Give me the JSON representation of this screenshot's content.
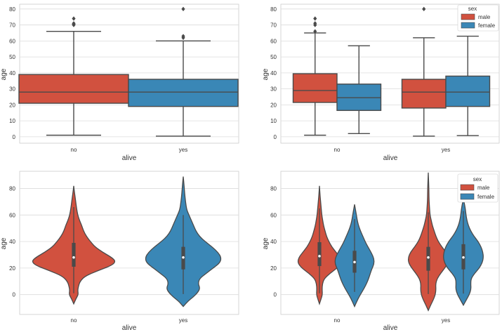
{
  "colors": {
    "male": "#d1513f",
    "female": "#3a87b6",
    "line": "#4a4a4a",
    "grid": "#dcdcdc",
    "frame": "#cccccc"
  },
  "chart_data": [
    {
      "id": "box-alive",
      "type": "box",
      "xlabel": "alive",
      "ylabel": "age",
      "ylim": [
        -4,
        83
      ],
      "yticks": [
        "0",
        "10",
        "20",
        "30",
        "40",
        "50",
        "60",
        "70",
        "80"
      ],
      "categories": [
        "no",
        "yes"
      ],
      "series": [
        {
          "name": "all",
          "color": "#d1513f",
          "stats": [
            {
              "min": 1,
              "q1": 21,
              "median": 28,
              "q3": 39,
              "max": 66,
              "outliers": [
                70,
                70.5,
                71,
                74
              ]
            },
            {
              "min": 0.4,
              "q1": 19,
              "median": 28,
              "q3": 36,
              "max": 60,
              "outliers": [
                62,
                63,
                80
              ]
            }
          ]
        }
      ],
      "per_category_colors": [
        "#d1513f",
        "#3a87b6"
      ]
    },
    {
      "id": "box-alive-sex",
      "type": "box",
      "xlabel": "alive",
      "ylabel": "age",
      "ylim": [
        -4,
        83
      ],
      "yticks": [
        "0",
        "10",
        "20",
        "30",
        "40",
        "50",
        "60",
        "70",
        "80"
      ],
      "categories": [
        "no",
        "yes"
      ],
      "legend": {
        "title": "sex",
        "labels": [
          "male",
          "female"
        ],
        "position": "top-right"
      },
      "series": [
        {
          "name": "male",
          "color": "#d1513f",
          "stats": [
            {
              "min": 1,
              "q1": 21.5,
              "median": 29,
              "q3": 39.5,
              "max": 65,
              "outliers": [
                66,
                70,
                71,
                74
              ]
            },
            {
              "min": 0.4,
              "q1": 18,
              "median": 28,
              "q3": 36,
              "max": 62,
              "outliers": [
                80
              ]
            }
          ]
        },
        {
          "name": "female",
          "color": "#3a87b6",
          "stats": [
            {
              "min": 2,
              "q1": 16.5,
              "median": 24.5,
              "q3": 33,
              "max": 57,
              "outliers": []
            },
            {
              "min": 0.75,
              "q1": 19,
              "median": 28,
              "q3": 38,
              "max": 63,
              "outliers": []
            }
          ]
        }
      ]
    },
    {
      "id": "violin-alive",
      "type": "violin",
      "xlabel": "alive",
      "ylabel": "age",
      "ylim": [
        -15,
        93
      ],
      "yticks": [
        "0",
        "20",
        "40",
        "60",
        "80"
      ],
      "yticks_values": [
        0,
        20,
        40,
        60,
        80
      ],
      "categories": [
        "no",
        "yes"
      ],
      "per_category_colors": [
        "#d1513f",
        "#3a87b6"
      ],
      "series": [
        {
          "name": "all",
          "violins": [
            {
              "min": -7,
              "max": 82,
              "whisker_lo": 1,
              "whisker_hi": 66,
              "q1": 21,
              "median": 28,
              "q3": 39,
              "profile": [
                [
                  -7,
                  0.0
                ],
                [
                  -3,
                  0.04
                ],
                [
                  0,
                  0.08
                ],
                [
                  3,
                  0.07
                ],
                [
                  6,
                  0.08
                ],
                [
                  10,
                  0.11
                ],
                [
                  14,
                  0.2
                ],
                [
                  18,
                  0.42
                ],
                [
                  22,
                  0.66
                ],
                [
                  25,
                  0.73
                ],
                [
                  28,
                  0.66
                ],
                [
                  32,
                  0.5
                ],
                [
                  36,
                  0.37
                ],
                [
                  40,
                  0.29
                ],
                [
                  44,
                  0.22
                ],
                [
                  48,
                  0.17
                ],
                [
                  52,
                  0.14
                ],
                [
                  56,
                  0.1
                ],
                [
                  60,
                  0.07
                ],
                [
                  65,
                  0.05
                ],
                [
                  70,
                  0.035
                ],
                [
                  75,
                  0.02
                ],
                [
                  78,
                  0.01
                ],
                [
                  82,
                  0.0
                ]
              ]
            },
            {
              "min": -9,
              "max": 89,
              "whisker_lo": 0.4,
              "whisker_hi": 60,
              "q1": 19,
              "median": 28,
              "q3": 36,
              "profile": [
                [
                  -9,
                  0.0
                ],
                [
                  -5,
                  0.08
                ],
                [
                  -2,
                  0.17
                ],
                [
                  2,
                  0.26
                ],
                [
                  5,
                  0.29
                ],
                [
                  8,
                  0.26
                ],
                [
                  12,
                  0.28
                ],
                [
                  16,
                  0.4
                ],
                [
                  20,
                  0.52
                ],
                [
                  24,
                  0.64
                ],
                [
                  28,
                  0.66
                ],
                [
                  32,
                  0.6
                ],
                [
                  36,
                  0.5
                ],
                [
                  40,
                  0.38
                ],
                [
                  44,
                  0.28
                ],
                [
                  48,
                  0.22
                ],
                [
                  52,
                  0.18
                ],
                [
                  56,
                  0.14
                ],
                [
                  60,
                  0.1
                ],
                [
                  64,
                  0.06
                ],
                [
                  70,
                  0.04
                ],
                [
                  76,
                  0.025
                ],
                [
                  82,
                  0.015
                ],
                [
                  89,
                  0.0
                ]
              ]
            }
          ]
        }
      ]
    },
    {
      "id": "violin-alive-sex",
      "type": "violin",
      "xlabel": "alive",
      "ylabel": "age",
      "ylim": [
        -15,
        93
      ],
      "yticks": [
        "0",
        "20",
        "40",
        "60",
        "80"
      ],
      "yticks_values": [
        0,
        20,
        40,
        60,
        80
      ],
      "categories": [
        "no",
        "yes"
      ],
      "legend": {
        "title": "sex",
        "labels": [
          "male",
          "female"
        ],
        "position": "top-right"
      },
      "series": [
        {
          "name": "male",
          "color": "#d1513f",
          "violins": [
            {
              "min": -7,
              "max": 82,
              "whisker_lo": 1,
              "whisker_hi": 65,
              "q1": 21.5,
              "median": 29,
              "q3": 39.5,
              "profile": [
                [
                  -7,
                  0.0
                ],
                [
                  -3,
                  0.06
                ],
                [
                  0,
                  0.1
                ],
                [
                  4,
                  0.09
                ],
                [
                  8,
                  0.1
                ],
                [
                  12,
                  0.16
                ],
                [
                  16,
                  0.36
                ],
                [
                  20,
                  0.6
                ],
                [
                  24,
                  0.74
                ],
                [
                  28,
                  0.7
                ],
                [
                  32,
                  0.56
                ],
                [
                  36,
                  0.42
                ],
                [
                  40,
                  0.32
                ],
                [
                  44,
                  0.24
                ],
                [
                  48,
                  0.19
                ],
                [
                  52,
                  0.14
                ],
                [
                  56,
                  0.11
                ],
                [
                  60,
                  0.08
                ],
                [
                  65,
                  0.06
                ],
                [
                  70,
                  0.04
                ],
                [
                  75,
                  0.02
                ],
                [
                  82,
                  0.0
                ]
              ]
            },
            {
              "min": -12,
              "max": 92,
              "whisker_lo": 0.4,
              "whisker_hi": 62,
              "q1": 18,
              "median": 28,
              "q3": 36,
              "profile": [
                [
                  -12,
                  0.0
                ],
                [
                  -8,
                  0.08
                ],
                [
                  -4,
                  0.17
                ],
                [
                  0,
                  0.24
                ],
                [
                  4,
                  0.26
                ],
                [
                  8,
                  0.25
                ],
                [
                  12,
                  0.3
                ],
                [
                  16,
                  0.42
                ],
                [
                  20,
                  0.56
                ],
                [
                  24,
                  0.67
                ],
                [
                  28,
                  0.68
                ],
                [
                  32,
                  0.6
                ],
                [
                  36,
                  0.46
                ],
                [
                  40,
                  0.34
                ],
                [
                  44,
                  0.26
                ],
                [
                  48,
                  0.2
                ],
                [
                  52,
                  0.14
                ],
                [
                  56,
                  0.1
                ],
                [
                  60,
                  0.06
                ],
                [
                  66,
                  0.04
                ],
                [
                  72,
                  0.025
                ],
                [
                  80,
                  0.02
                ],
                [
                  86,
                  0.01
                ],
                [
                  92,
                  0.0
                ]
              ]
            }
          ]
        },
        {
          "name": "female",
          "color": "#3a87b6",
          "violins": [
            {
              "min": -9,
              "max": 68,
              "whisker_lo": 2,
              "whisker_hi": 57,
              "q1": 16.5,
              "median": 24.5,
              "q3": 33,
              "profile": [
                [
                  -9,
                  0.0
                ],
                [
                  -5,
                  0.08
                ],
                [
                  -1,
                  0.17
                ],
                [
                  3,
                  0.28
                ],
                [
                  7,
                  0.38
                ],
                [
                  11,
                  0.46
                ],
                [
                  15,
                  0.52
                ],
                [
                  19,
                  0.58
                ],
                [
                  23,
                  0.66
                ],
                [
                  27,
                  0.66
                ],
                [
                  31,
                  0.58
                ],
                [
                  35,
                  0.48
                ],
                [
                  39,
                  0.38
                ],
                [
                  43,
                  0.3
                ],
                [
                  47,
                  0.22
                ],
                [
                  51,
                  0.15
                ],
                [
                  55,
                  0.1
                ],
                [
                  59,
                  0.07
                ],
                [
                  63,
                  0.04
                ],
                [
                  68,
                  0.0
                ]
              ]
            },
            {
              "min": -8,
              "max": 72,
              "whisker_lo": 0.75,
              "whisker_hi": 63,
              "q1": 19,
              "median": 28,
              "q3": 38,
              "profile": [
                [
                  -8,
                  0.0
                ],
                [
                  -4,
                  0.1
                ],
                [
                  0,
                  0.2
                ],
                [
                  4,
                  0.26
                ],
                [
                  8,
                  0.25
                ],
                [
                  12,
                  0.26
                ],
                [
                  16,
                  0.38
                ],
                [
                  20,
                  0.54
                ],
                [
                  24,
                  0.64
                ],
                [
                  28,
                  0.68
                ],
                [
                  32,
                  0.66
                ],
                [
                  36,
                  0.6
                ],
                [
                  40,
                  0.5
                ],
                [
                  44,
                  0.36
                ],
                [
                  48,
                  0.25
                ],
                [
                  52,
                  0.17
                ],
                [
                  56,
                  0.12
                ],
                [
                  60,
                  0.09
                ],
                [
                  64,
                  0.07
                ],
                [
                  68,
                  0.04
                ],
                [
                  72,
                  0.0
                ]
              ]
            }
          ]
        }
      ]
    }
  ]
}
